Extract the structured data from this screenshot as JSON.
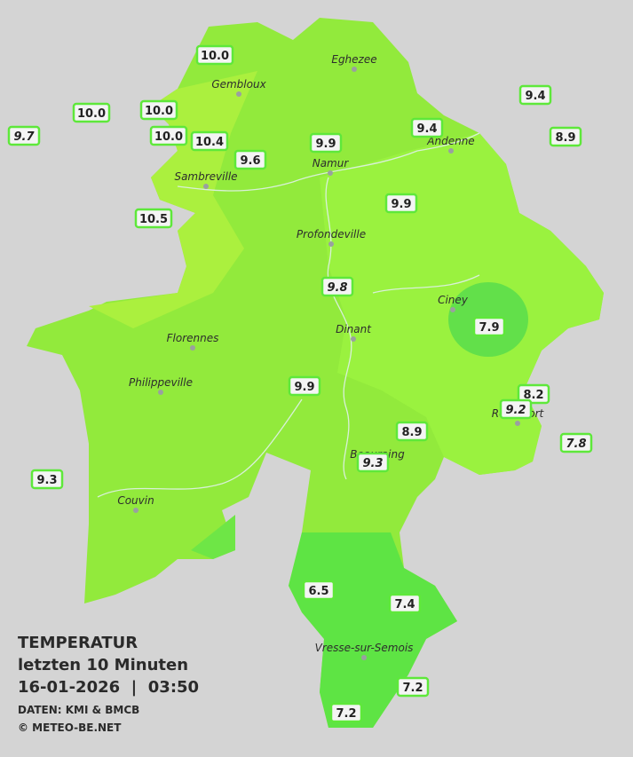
{
  "title": [
    "TEMPERATUR",
    "letzten 10 Minuten",
    "16-01-2026  |  03:50",
    "DATEN: KMI & BMCB",
    "© METEO-BE.NET"
  ],
  "cities": [
    "Eghezee",
    "Gembloux",
    "Andenne",
    "Namur",
    "Sambreville",
    "Profondeville",
    "Ciney",
    "Dinant",
    "Florennes",
    "Philippeville",
    "Rochefort",
    "Beauraing",
    "Couvin",
    "Vresse-sur-Semois"
  ],
  "stations": [
    "10.0",
    "10.0",
    "10.0",
    "9.7",
    "10.0",
    "10.4",
    "9.6",
    "9.9",
    "9.4",
    "9.4",
    "8.9",
    "9.9",
    "10.5",
    "9.8",
    "7.9",
    "9.9",
    "8.2",
    "9.2",
    "8.9",
    "9.3",
    "7.8",
    "9.3",
    "6.5",
    "7.4",
    "7.2",
    "7.2"
  ]
}
